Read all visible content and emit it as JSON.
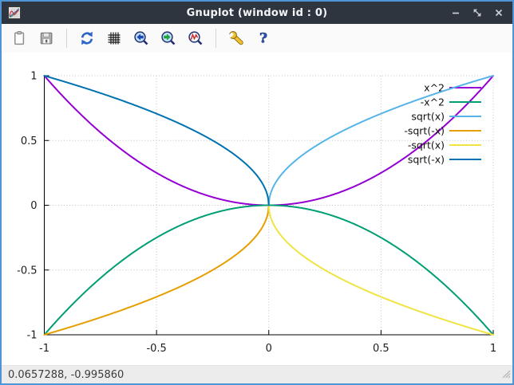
{
  "window": {
    "title": "Gnuplot (window id : 0)",
    "titlebar_color": "#2f353f",
    "border_color": "#4f94d4",
    "control_icons": [
      "minimize-icon",
      "restore-icon",
      "close-icon"
    ],
    "app_icon": "gnuplot-logo-icon"
  },
  "toolbar": {
    "icons": [
      "clipboard-icon",
      "save-icon",
      "refresh-icon",
      "grid-icon",
      "zoom-previous-icon",
      "zoom-next-icon",
      "zoom-reset-icon",
      "wrench-icon",
      "help-icon"
    ]
  },
  "status_bar": {
    "coordinates": "0.0657288, -0.995860"
  },
  "chart_data": {
    "type": "line",
    "title": "",
    "xlabel": "",
    "ylabel": "",
    "xlim": [
      -1,
      1
    ],
    "ylim": [
      -1,
      1
    ],
    "grid": true,
    "legend_position": "top-right",
    "xticks": {
      "values": [
        -1,
        -0.5,
        0,
        0.5,
        1
      ],
      "labels": [
        "-1",
        "-0.5",
        "0",
        "0.5",
        "1"
      ]
    },
    "yticks": {
      "values": [
        -1,
        -0.5,
        0,
        0.5,
        1
      ],
      "labels": [
        "-1",
        "-0.5",
        "0",
        "0.5",
        "1"
      ]
    },
    "series": [
      {
        "name": "x^2",
        "color": "#9400d3",
        "expr": "x*x",
        "domain": [
          -1,
          1
        ]
      },
      {
        "name": "-x^2",
        "color": "#009e73",
        "expr": "-x*x",
        "domain": [
          -1,
          1
        ]
      },
      {
        "name": "sqrt(x)",
        "color": "#56b4e9",
        "expr": "Math.sqrt(x)",
        "domain": [
          0,
          1
        ]
      },
      {
        "name": "-sqrt(-x)",
        "color": "#e69f00",
        "expr": "-Math.sqrt(-x)",
        "domain": [
          -1,
          0
        ]
      },
      {
        "name": "-sqrt(x)",
        "color": "#f0e442",
        "expr": "-Math.sqrt(x)",
        "domain": [
          0,
          1
        ]
      },
      {
        "name": "sqrt(-x)",
        "color": "#0072b2",
        "expr": "Math.sqrt(-x)",
        "domain": [
          -1,
          0
        ]
      }
    ]
  }
}
